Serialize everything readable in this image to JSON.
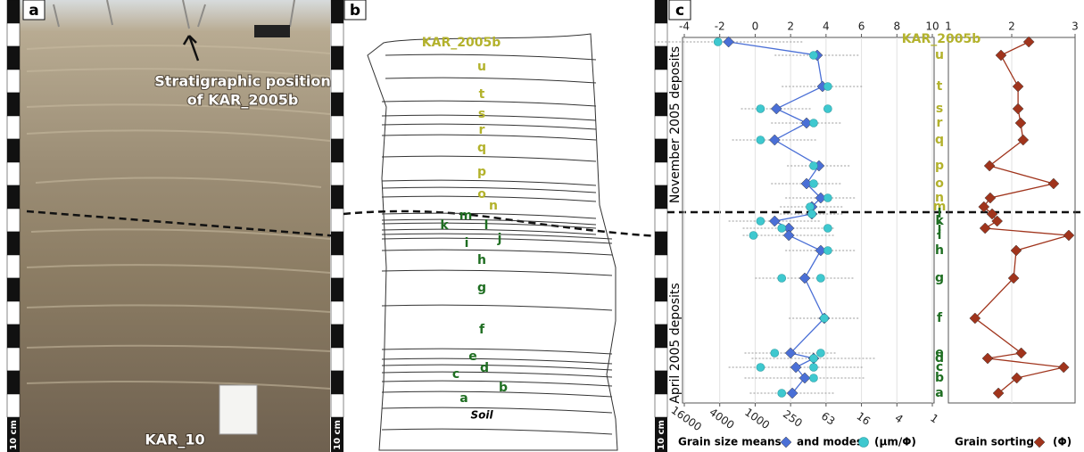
{
  "panel_a": {
    "label": "a",
    "annotation": [
      "Stratigraphic position",
      "of KAR_2005b"
    ],
    "sample": "KAR_10"
  },
  "scale_label": "10 cm",
  "panel_b": {
    "label": "b",
    "sample": "KAR_2005b",
    "layers": [
      "u",
      "t",
      "s",
      "r",
      "q",
      "p",
      "o",
      "n",
      "m",
      "l",
      "k",
      "j",
      "i",
      "h",
      "g",
      "f",
      "e",
      "d",
      "c",
      "b",
      "a"
    ],
    "base": "Soil"
  },
  "chart_data": [
    {
      "type": "line",
      "panel_label": "c",
      "annotations": [
        "November 2005 deposits",
        "April 2005 deposits"
      ],
      "categories": [
        "KAR_2005b",
        "u",
        "t",
        "s",
        "r",
        "q",
        "p",
        "o",
        "n",
        "m",
        "l",
        "k",
        "j",
        "i",
        "h",
        "g",
        "f",
        "e",
        "d",
        "c",
        "b",
        "a"
      ],
      "xlim": [
        -4,
        10
      ],
      "xticks": [
        -4,
        -2,
        0,
        2,
        4,
        6,
        8,
        10
      ],
      "x2ticks": [
        {
          "value": -4,
          "label": "16000"
        },
        {
          "value": -2,
          "label": "4000"
        },
        {
          "value": 0,
          "label": "1000"
        },
        {
          "value": 2,
          "label": "250"
        },
        {
          "value": 4,
          "label": "63"
        },
        {
          "value": 6,
          "label": "16"
        },
        {
          "value": 8,
          "label": "4"
        },
        {
          "value": 10,
          "label": "1"
        }
      ],
      "xlabel": "(μm/Φ)",
      "grid": true,
      "series": [
        {
          "name": "Grain size means",
          "color": "#4a6fd6",
          "marker": "diamond",
          "values": [
            -1.5,
            3.5,
            3.8,
            1.2,
            2.9,
            1.1,
            3.6,
            2.9,
            3.7,
            3.2,
            3.2,
            1.1,
            1.9,
            1.9,
            3.7,
            2.8,
            3.9,
            2.0,
            3.3,
            2.3,
            2.8,
            2.1
          ],
          "errors": [
            4.2,
            2.4,
            2.3,
            2.0,
            2.0,
            2.4,
            1.8,
            2.0,
            2.0,
            1.8,
            1.8,
            2.6,
            2.6,
            2.6,
            2.0,
            2.8,
            2.0,
            2.6,
            3.5,
            3.8,
            3.4,
            2.4
          ]
        },
        {
          "name": "and modes",
          "color": "#3ec8cf",
          "marker": "circle",
          "values": [
            [
              -2.1
            ],
            [
              3.3
            ],
            [
              4.1
            ],
            [
              0.3,
              4.1
            ],
            [
              3.3
            ],
            [
              0.3
            ],
            [
              3.3
            ],
            [
              3.3
            ],
            [
              4.1
            ],
            [
              3.1
            ],
            [
              3.2
            ],
            [
              0.3
            ],
            [
              1.5,
              4.1
            ],
            [
              -0.1
            ],
            [
              4.1
            ],
            [
              1.5,
              3.7
            ],
            [
              3.9
            ],
            [
              1.1,
              3.7
            ],
            [
              3.3
            ],
            [
              0.3,
              3.3
            ],
            [
              3.3
            ],
            [
              1.5
            ]
          ]
        }
      ]
    },
    {
      "type": "line",
      "xlim": [
        1,
        3
      ],
      "xticks": [
        1,
        2,
        3
      ],
      "xlabel": "(Φ)",
      "grid": true,
      "series": [
        {
          "name": "Grain sorting",
          "color": "#a0341c",
          "marker": "diamond",
          "values": [
            2.27,
            1.83,
            2.1,
            2.1,
            2.14,
            2.18,
            1.65,
            2.66,
            1.66,
            1.56,
            1.69,
            1.77,
            1.58,
            2.9,
            2.07,
            2.03,
            1.42,
            2.15,
            1.62,
            2.82,
            2.08,
            1.79
          ]
        }
      ]
    }
  ]
}
